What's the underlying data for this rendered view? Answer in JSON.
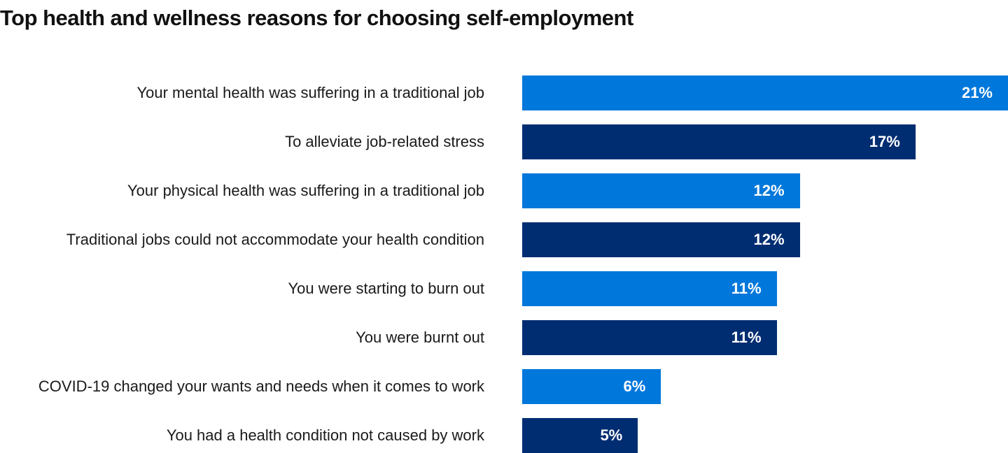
{
  "chart_data": {
    "type": "bar",
    "orientation": "horizontal",
    "title": "Top health and wellness reasons for choosing self-employment",
    "categories": [
      "Your mental health was suffering in a traditional job",
      "To alleviate job-related stress",
      "Your physical health was suffering in a traditional job",
      "Traditional jobs could not accommodate your health condition",
      "You were starting to burn out",
      "You were burnt out",
      "COVID-19 changed your wants and needs when it comes to work",
      "You had a health condition not caused by work"
    ],
    "values": [
      21,
      17,
      12,
      12,
      11,
      11,
      6,
      5
    ],
    "value_labels": [
      "21%",
      "17%",
      "12%",
      "12%",
      "11%",
      "11%",
      "6%",
      "5%"
    ],
    "unit": "%",
    "xlim": [
      0,
      21
    ],
    "grid": false,
    "colors": [
      "#0077DB",
      "#002D72"
    ]
  }
}
